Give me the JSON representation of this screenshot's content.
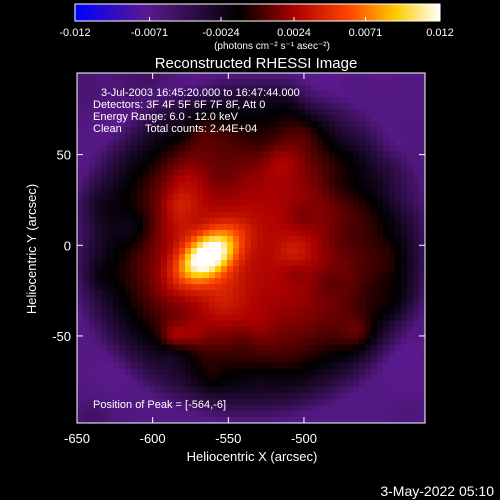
{
  "chart_data": {
    "type": "heatmap",
    "title": "Reconstructed RHESSI Image",
    "xlabel": "Heliocentric X (arcsec)",
    "ylabel": "Heliocentric Y (arcsec)",
    "xlim": [
      -650,
      -420
    ],
    "ylim": [
      -98,
      95
    ],
    "x_ticks": [
      "-650",
      "-600",
      "-550",
      "-500"
    ],
    "x_tick_values": [
      -650,
      -600,
      -550,
      -500
    ],
    "y_ticks": [
      "50",
      "0",
      "-50"
    ],
    "y_tick_values": [
      50,
      0,
      -50
    ],
    "colorbar": {
      "range": [
        -0.012,
        0.012
      ],
      "tick_labels": [
        "-0.012",
        "-0.0071",
        "-0.0024",
        "0.0024",
        "0.0071",
        "0.012"
      ],
      "tick_values": [
        -0.012,
        -0.0071,
        -0.0024,
        0.0024,
        0.0071,
        0.012
      ],
      "unit_label": "(photons cm⁻² s⁻¹ asec⁻²)",
      "colors": [
        "#0000ff",
        "#5a1a8c",
        "#000000",
        "#aa0000",
        "#ff4400",
        "#ffcc00",
        "#ffffff"
      ]
    },
    "peak": {
      "x": -564,
      "y": -6
    },
    "annotations": {
      "time": "3-Jul-2003 16:45:20.000 to 16:47:44.000",
      "detectors": "Detectors: 3F 4F 5F 6F 7F 8F, Att 0",
      "energy": "Energy Range: 6.0 - 12.0 keV",
      "method": "Clean",
      "counts": "Total counts: 2.44E+04",
      "peak_text": "Position of Peak = [-564,-6]"
    },
    "timestamp": "3-May-2022 05:10"
  }
}
